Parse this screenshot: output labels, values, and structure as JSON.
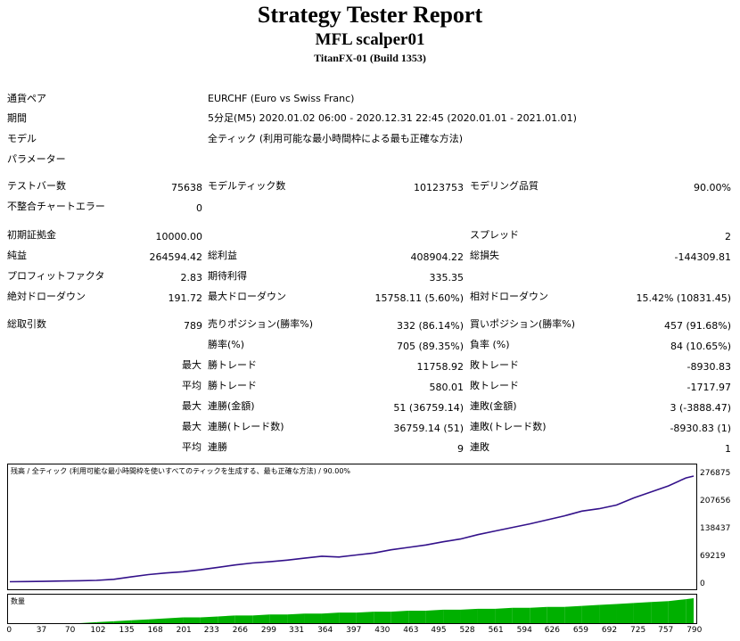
{
  "header": {
    "title": "Strategy Tester Report",
    "ea": "MFL scalper01",
    "server": "TitanFX-01 (Build 1353)"
  },
  "info": {
    "symbol_label": "通貨ペア",
    "symbol": "EURCHF (Euro vs Swiss Franc)",
    "period_label": "期間",
    "period": "5分足(M5) 2020.01.02 06:00 - 2020.12.31 22:45 (2020.01.01 - 2021.01.01)",
    "model_label": "モデル",
    "model": "全ティック (利用可能な最小時間枠による最も正確な方法)",
    "params_label": "パラメーター"
  },
  "stats": {
    "bars_label": "テストバー数",
    "bars": "75638",
    "ticks_label": "モデルティック数",
    "ticks": "10123753",
    "quality_label": "モデリング品質",
    "quality": "90.00%",
    "errors_label": "不整合チャートエラー",
    "errors": "0",
    "deposit_label": "初期証拠金",
    "deposit": "10000.00",
    "spread_label": "スプレッド",
    "spread": "2",
    "net_label": "純益",
    "net": "264594.42",
    "gross_profit_label": "総利益",
    "gross_profit": "408904.22",
    "gross_loss_label": "総損失",
    "gross_loss": "-144309.81",
    "pf_label": "プロフィットファクタ",
    "pf": "2.83",
    "expected_label": "期待利得",
    "expected": "335.35",
    "abs_dd_label": "絶対ドローダウン",
    "abs_dd": "191.72",
    "max_dd_label": "最大ドローダウン",
    "max_dd": "15758.11 (5.60%)",
    "rel_dd_label": "相対ドローダウン",
    "rel_dd": "15.42% (10831.45)",
    "trades_label": "総取引数",
    "trades": "789",
    "short_label": "売りポジション(勝率%)",
    "short": "332 (86.14%)",
    "long_label": "買いポジション(勝率%)",
    "long": "457 (91.68%)",
    "win_label": "勝率(%)",
    "win": "705 (89.35%)",
    "loss_label": "負率 (%)",
    "loss": "84 (10.65%)",
    "max_label": "最大",
    "avg_label": "平均",
    "profit_trade_label": "勝トレード",
    "largest_profit": "11758.92",
    "loss_trade_label": "敗トレード",
    "largest_loss": "-8930.83",
    "avg_profit": "580.01",
    "avg_loss": "-1717.97",
    "consec_wins_money_label": "連勝(金額)",
    "consec_wins_money": "51 (36759.14)",
    "consec_losses_money_label": "連敗(金額)",
    "consec_losses_money": "3 (-3888.47)",
    "consec_profit_label": "連勝(トレード数)",
    "consec_profit": "36759.14 (51)",
    "consec_loss_label": "連敗(トレード数)",
    "consec_loss": "-8930.83 (1)",
    "avg_consec_wins_label": "連勝",
    "avg_consec_wins": "9",
    "avg_consec_losses_label": "連敗",
    "avg_consec_losses": "1"
  },
  "colors": {
    "balance": "#33118a",
    "volume": "#00b000",
    "text": "#000000"
  },
  "chart_data": {
    "type": "line",
    "title": "残高 / 全ティック (利用可能な最小時間枠を使いすべてのティックを生成する、最も正確な方法) / 90.00%",
    "volume_label": "数量",
    "ylim": [
      0,
      276875
    ],
    "y_ticks": [
      "276875",
      "207656",
      "138437",
      "69219",
      "0"
    ],
    "x_ticks": [
      "0",
      "37",
      "70",
      "102",
      "135",
      "168",
      "201",
      "233",
      "266",
      "299",
      "331",
      "364",
      "397",
      "430",
      "463",
      "495",
      "528",
      "561",
      "594",
      "626",
      "659",
      "692",
      "725",
      "757",
      "790"
    ],
    "x": [
      0,
      20,
      40,
      60,
      80,
      100,
      120,
      140,
      160,
      180,
      200,
      220,
      240,
      260,
      280,
      300,
      320,
      340,
      360,
      380,
      400,
      420,
      440,
      460,
      480,
      500,
      520,
      540,
      560,
      580,
      600,
      620,
      640,
      660,
      680,
      700,
      720,
      740,
      760,
      780,
      789
    ],
    "balance": [
      10000,
      10500,
      11000,
      11800,
      12500,
      13500,
      16000,
      22000,
      28000,
      32000,
      35000,
      40000,
      46000,
      52000,
      57000,
      60000,
      64000,
      69000,
      74000,
      72000,
      77000,
      82000,
      90000,
      96000,
      102000,
      110000,
      117000,
      128000,
      137000,
      146000,
      155000,
      165000,
      175000,
      187000,
      193000,
      202000,
      220000,
      235000,
      250000,
      270000,
      274600
    ],
    "volume": [
      0,
      0,
      0,
      0,
      0,
      1,
      2,
      3,
      4,
      5,
      6,
      6,
      7,
      8,
      8,
      9,
      9,
      10,
      10,
      11,
      11,
      12,
      12,
      13,
      13,
      14,
      14,
      15,
      15,
      16,
      16,
      17,
      17,
      18,
      19,
      20,
      21,
      22,
      23,
      25,
      26
    ]
  }
}
